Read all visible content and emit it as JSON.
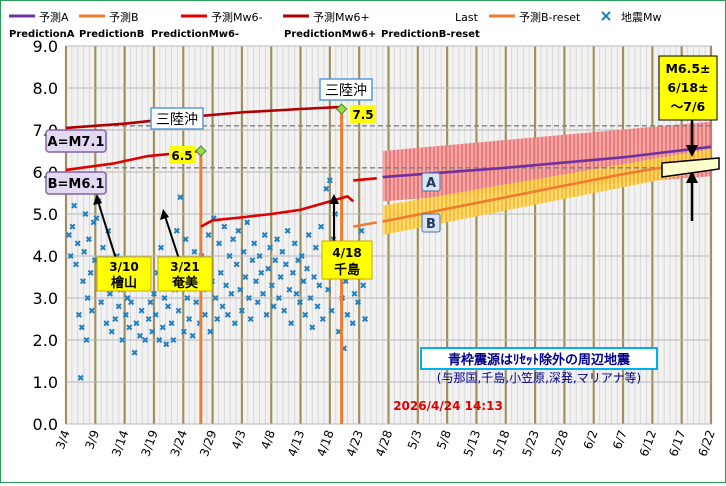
{
  "chart_data": {
    "type": "line",
    "x_range": [
      "2026-03-04",
      "2026-06-22"
    ],
    "ylim": [
      0,
      9.0
    ],
    "y_ticks": [
      "9.0",
      "8.0",
      "7.0",
      "6.0",
      "5.0",
      "4.0",
      "3.0",
      "2.0",
      "1.0",
      "0.0"
    ],
    "x_tick_labels": [
      "3/4",
      "3/9",
      "3/14",
      "3/19",
      "3/24",
      "3/29",
      "4/3",
      "4/8",
      "4/13",
      "4/18",
      "4/23",
      "4/28",
      "5/3",
      "5/8",
      "5/13",
      "5/18",
      "5/23",
      "5/28",
      "6/2",
      "6/7",
      "6/12",
      "6/17",
      "6/22"
    ],
    "grid": true,
    "legend_position": "top",
    "legend": [
      {
        "name": "予測A",
        "sub": "PredictionA",
        "color": "#7030a0",
        "kind": "line"
      },
      {
        "name": "予測B",
        "sub": "PredictionB",
        "color": "#ed7d31",
        "kind": "line"
      },
      {
        "name": "予測Mw6-",
        "sub": "PredictionMw6-",
        "color": "#e00000",
        "kind": "line"
      },
      {
        "name": "予測Mw6+",
        "sub": "PredictionMw6+",
        "color": "#b00000",
        "kind": "line"
      },
      {
        "name": "Last",
        "sub": "",
        "color": "#ffffff",
        "kind": "none"
      },
      {
        "name": "予測B-reset",
        "sub": "PredictionB-reset",
        "color": "#ed7d31",
        "kind": "line"
      },
      {
        "name": "地震Mw",
        "sub": "",
        "color": "#1f7fc0",
        "kind": "marker"
      }
    ],
    "series": [
      {
        "name": "予測Mw6+",
        "color": "#b00000",
        "points": [
          [
            "3/4",
            7.05
          ],
          [
            "3/14",
            7.15
          ],
          [
            "3/24",
            7.3
          ],
          [
            "4/3",
            7.42
          ],
          [
            "4/13",
            7.5
          ],
          [
            "4/20",
            7.55
          ]
        ]
      },
      {
        "name": "予測Mw6-",
        "color": "#e00000",
        "points": [
          [
            "3/4",
            6.05
          ],
          [
            "3/12",
            6.2
          ],
          [
            "3/18",
            6.38
          ],
          [
            "3/27",
            6.5
          ]
        ]
      },
      {
        "name": "予測Mw6-",
        "color": "#e00000",
        "points": [
          [
            "3/27",
            4.7
          ],
          [
            "3/29",
            4.85
          ],
          [
            "4/3",
            4.92
          ],
          [
            "4/8",
            5.0
          ],
          [
            "4/13",
            5.1
          ],
          [
            "4/18",
            5.3
          ],
          [
            "4/21",
            5.42
          ],
          [
            "4/22",
            5.3
          ]
        ]
      },
      {
        "name": "予測Mw6-",
        "color": "#e00000",
        "points": [
          [
            "4/22",
            5.8
          ],
          [
            "4/26",
            5.85
          ]
        ]
      },
      {
        "name": "予測B-reset",
        "color": "#ed7d31",
        "points": [
          [
            "4/22",
            4.7
          ],
          [
            "4/26",
            4.8
          ]
        ]
      },
      {
        "name": "予測A",
        "color": "#7030a0",
        "points": [
          [
            "4/27",
            5.88
          ],
          [
            "5/18",
            6.1
          ],
          [
            "6/7",
            6.35
          ],
          [
            "6/22",
            6.6
          ]
        ]
      },
      {
        "name": "予測B",
        "color": "#ed7d31",
        "points": [
          [
            "4/27",
            4.82
          ],
          [
            "5/18",
            5.4
          ],
          [
            "6/7",
            5.95
          ],
          [
            "6/22",
            6.3
          ]
        ]
      }
    ],
    "bands": [
      {
        "name": "A",
        "color": "#e05050",
        "from": "4/27",
        "to": "6/22",
        "low_start": 5.3,
        "low_end": 5.9,
        "high_start": 6.5,
        "high_end": 7.2
      },
      {
        "name": "B",
        "color": "#ffc000",
        "from": "4/27",
        "to": "6/22",
        "low_start": 4.5,
        "low_end": 6.05,
        "high_start": 5.2,
        "high_end": 6.55
      }
    ],
    "vlines": [
      {
        "x": "3/27",
        "y": 6.5,
        "color": "#ed7d31"
      },
      {
        "x": "4/20",
        "y": 7.5,
        "color": "#ed7d31"
      }
    ],
    "hlines": [
      {
        "y": 7.1,
        "label": "A=M7.1"
      },
      {
        "y": 6.1,
        "label": "B=M6.1"
      }
    ],
    "scatter": [
      [
        0.5,
        4.5
      ],
      [
        0.8,
        4.0
      ],
      [
        1.1,
        4.7
      ],
      [
        1.4,
        5.2
      ],
      [
        1.7,
        3.8
      ],
      [
        2.0,
        4.3
      ],
      [
        2.2,
        2.6
      ],
      [
        2.5,
        1.1
      ],
      [
        2.7,
        2.3
      ],
      [
        2.9,
        3.4
      ],
      [
        3.1,
        4.1
      ],
      [
        3.3,
        5.0
      ],
      [
        3.5,
        2.0
      ],
      [
        3.7,
        3.0
      ],
      [
        3.9,
        4.4
      ],
      [
        4.2,
        3.6
      ],
      [
        4.4,
        2.7
      ],
      [
        4.7,
        4.8
      ],
      [
        4.9,
        3.9
      ],
      [
        5.2,
        4.9
      ],
      [
        5.5,
        5.3
      ],
      [
        5.8,
        3.5
      ],
      [
        6.0,
        2.9
      ],
      [
        6.3,
        4.2
      ],
      [
        6.6,
        3.3
      ],
      [
        6.9,
        2.4
      ],
      [
        7.2,
        4.6
      ],
      [
        7.5,
        3.1
      ],
      [
        7.8,
        2.2
      ],
      [
        8.1,
        3.7
      ],
      [
        8.4,
        2.5
      ],
      [
        8.7,
        4.0
      ],
      [
        9.0,
        2.8
      ],
      [
        9.3,
        3.2
      ],
      [
        9.6,
        2.0
      ],
      [
        9.9,
        3.5
      ],
      [
        10.2,
        2.6
      ],
      [
        10.5,
        3.0
      ],
      [
        10.8,
        2.3
      ],
      [
        11.1,
        2.9
      ],
      [
        11.4,
        3.4
      ],
      [
        11.7,
        1.7
      ],
      [
        12.0,
        2.4
      ],
      [
        12.3,
        3.8
      ],
      [
        12.6,
        2.1
      ],
      [
        12.9,
        2.7
      ],
      [
        13.2,
        3.3
      ],
      [
        13.5,
        2.0
      ],
      [
        13.8,
        3.9
      ],
      [
        14.1,
        2.5
      ],
      [
        14.4,
        2.9
      ],
      [
        14.7,
        2.2
      ],
      [
        15.0,
        3.1
      ],
      [
        15.3,
        2.6
      ],
      [
        15.6,
        3.6
      ],
      [
        15.9,
        2.0
      ],
      [
        16.2,
        4.2
      ],
      [
        16.5,
        2.3
      ],
      [
        16.8,
        3.0
      ],
      [
        17.1,
        1.9
      ],
      [
        17.4,
        2.8
      ],
      [
        17.7,
        3.4
      ],
      [
        18.0,
        2.4
      ],
      [
        18.3,
        2.0
      ],
      [
        18.6,
        3.2
      ],
      [
        18.9,
        4.6
      ],
      [
        19.2,
        2.7
      ],
      [
        19.5,
        5.4
      ],
      [
        19.8,
        3.9
      ],
      [
        20.1,
        2.2
      ],
      [
        20.4,
        4.4
      ],
      [
        20.7,
        3.0
      ],
      [
        21.0,
        2.5
      ],
      [
        21.3,
        3.7
      ],
      [
        21.6,
        2.1
      ],
      [
        21.9,
        4.1
      ],
      [
        22.2,
        2.9
      ],
      [
        22.5,
        3.5
      ],
      [
        22.8,
        2.4
      ],
      [
        23.1,
        4.0
      ],
      [
        23.4,
        3.2
      ],
      [
        23.7,
        2.6
      ],
      [
        24.0,
        3.8
      ],
      [
        24.3,
        4.5
      ],
      [
        24.6,
        2.2
      ],
      [
        24.9,
        3.4
      ],
      [
        25.2,
        4.9
      ],
      [
        25.5,
        3.0
      ],
      [
        25.8,
        2.5
      ],
      [
        26.1,
        4.3
      ],
      [
        26.4,
        3.6
      ],
      [
        26.7,
        2.8
      ],
      [
        27.0,
        4.7
      ],
      [
        27.3,
        3.3
      ],
      [
        27.6,
        2.6
      ],
      [
        27.9,
        4.0
      ],
      [
        28.2,
        3.1
      ],
      [
        28.5,
        4.4
      ],
      [
        28.8,
        2.4
      ],
      [
        29.1,
        3.8
      ],
      [
        29.4,
        4.6
      ],
      [
        29.7,
        3.2
      ],
      [
        30.0,
        2.7
      ],
      [
        30.3,
        4.1
      ],
      [
        30.6,
        3.5
      ],
      [
        30.9,
        4.8
      ],
      [
        31.2,
        3.0
      ],
      [
        31.5,
        2.5
      ],
      [
        31.8,
        3.9
      ],
      [
        32.1,
        4.3
      ],
      [
        32.4,
        3.4
      ],
      [
        32.7,
        2.9
      ],
      [
        33.0,
        4.0
      ],
      [
        33.3,
        3.6
      ],
      [
        33.6,
        3.1
      ],
      [
        33.9,
        4.5
      ],
      [
        34.2,
        2.6
      ],
      [
        34.5,
        3.7
      ],
      [
        34.8,
        4.2
      ],
      [
        35.1,
        3.3
      ],
      [
        35.4,
        2.8
      ],
      [
        35.7,
        3.9
      ],
      [
        36.0,
        4.4
      ],
      [
        36.3,
        3.0
      ],
      [
        36.6,
        3.5
      ],
      [
        36.9,
        4.1
      ],
      [
        37.2,
        2.7
      ],
      [
        37.5,
        3.8
      ],
      [
        37.8,
        4.6
      ],
      [
        38.1,
        3.2
      ],
      [
        38.4,
        2.4
      ],
      [
        38.7,
        3.6
      ],
      [
        39.0,
        4.3
      ],
      [
        39.3,
        3.1
      ],
      [
        39.6,
        3.9
      ],
      [
        39.9,
        2.9
      ],
      [
        40.2,
        4.0
      ],
      [
        40.5,
        3.4
      ],
      [
        40.8,
        2.6
      ],
      [
        41.1,
        3.7
      ],
      [
        41.4,
        4.5
      ],
      [
        41.7,
        3.0
      ],
      [
        42.0,
        2.3
      ],
      [
        42.3,
        3.5
      ],
      [
        42.6,
        4.2
      ],
      [
        42.9,
        2.8
      ],
      [
        43.2,
        3.3
      ],
      [
        43.5,
        4.7
      ],
      [
        43.8,
        2.5
      ],
      [
        44.1,
        3.9
      ],
      [
        44.4,
        5.6
      ],
      [
        44.7,
        3.2
      ],
      [
        45.0,
        5.8
      ],
      [
        45.3,
        2.7
      ],
      [
        45.6,
        4.4
      ],
      [
        45.9,
        5.0
      ],
      [
        46.2,
        3.6
      ],
      [
        46.5,
        2.2
      ],
      [
        46.8,
        4.1
      ],
      [
        47.1,
        3.0
      ],
      [
        47.4,
        1.8
      ],
      [
        47.7,
        3.4
      ],
      [
        48.0,
        2.6
      ],
      [
        48.3,
        4.3
      ],
      [
        48.6,
        3.8
      ],
      [
        48.9,
        2.4
      ],
      [
        49.2,
        3.1
      ],
      [
        49.5,
        4.0
      ],
      [
        49.8,
        2.9
      ],
      [
        50.1,
        3.5
      ],
      [
        50.4,
        4.6
      ],
      [
        50.7,
        3.3
      ],
      [
        51.0,
        2.5
      ],
      [
        51.3,
        3.7
      ]
    ]
  },
  "annotations": {
    "sanriku_1": "三陸沖",
    "sanriku_2": "三陸沖",
    "val_65": "6.5",
    "val_75": "7.5",
    "a_label": "A=M7.1",
    "b_label": "B=M6.1",
    "tag_310_line1": "3/10",
    "tag_310_line2": "檜山",
    "tag_321_line1": "3/21",
    "tag_321_line2": "奄美",
    "tag_418_line1": "4/18",
    "tag_418_line2": "千島",
    "band_a": "A",
    "band_b": "B",
    "forecast_line1": "M6.5±",
    "forecast_line2": "6/18±",
    "forecast_line3": "～7/6",
    "info_title": "青枠震源はﾘｾｯﾄ除外の周辺地震",
    "info_sub": "(与那国,千島,小笠原,深発,マリアナ等)",
    "timestamp": "2026/4/24 14:13"
  }
}
